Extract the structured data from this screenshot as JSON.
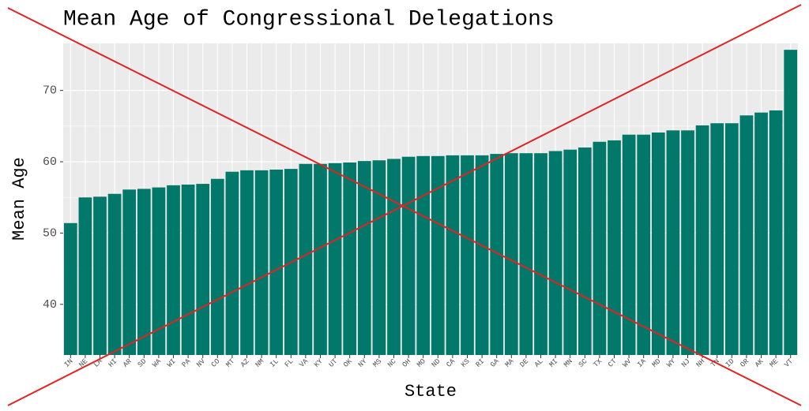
{
  "chart_data": {
    "type": "bar",
    "title": "Mean Age of Congressional Delegations",
    "x_label": "State",
    "y_label": "Mean Age",
    "color": "#017869",
    "grid": true,
    "categories": [
      "IN",
      "NE",
      "LA",
      "HI",
      "AR",
      "SD",
      "WA",
      "WI",
      "PA",
      "NV",
      "CO",
      "MT",
      "AZ",
      "NM",
      "IL",
      "FL",
      "VA",
      "KY",
      "UT",
      "OK",
      "NY",
      "MS",
      "NC",
      "OH",
      "MO",
      "ND",
      "CA",
      "KS",
      "RI",
      "GA",
      "MA",
      "DE",
      "AL",
      "MI",
      "MN",
      "SC",
      "TX",
      "CT",
      "WV",
      "IA",
      "MD",
      "WY",
      "NJ",
      "NH",
      "TN",
      "ID",
      "OR",
      "AK",
      "ME",
      "VT"
    ],
    "values": [
      51.4,
      55.0,
      55.1,
      55.5,
      56.1,
      56.2,
      56.4,
      56.7,
      56.8,
      56.9,
      57.6,
      58.6,
      58.8,
      58.8,
      58.9,
      59.0,
      59.7,
      59.7,
      59.8,
      59.9,
      60.1,
      60.2,
      60.4,
      60.7,
      60.8,
      60.8,
      60.9,
      60.9,
      60.9,
      61.1,
      61.2,
      61.2,
      61.2,
      61.5,
      61.7,
      62.0,
      62.8,
      63.0,
      63.8,
      63.8,
      64.1,
      64.4,
      64.4,
      65.1,
      65.4,
      65.4,
      66.5,
      66.9,
      67.2,
      75.7
    ],
    "ylim": [
      32.9,
      76.6
    ],
    "yticks": [
      40,
      50,
      60,
      70
    ]
  }
}
